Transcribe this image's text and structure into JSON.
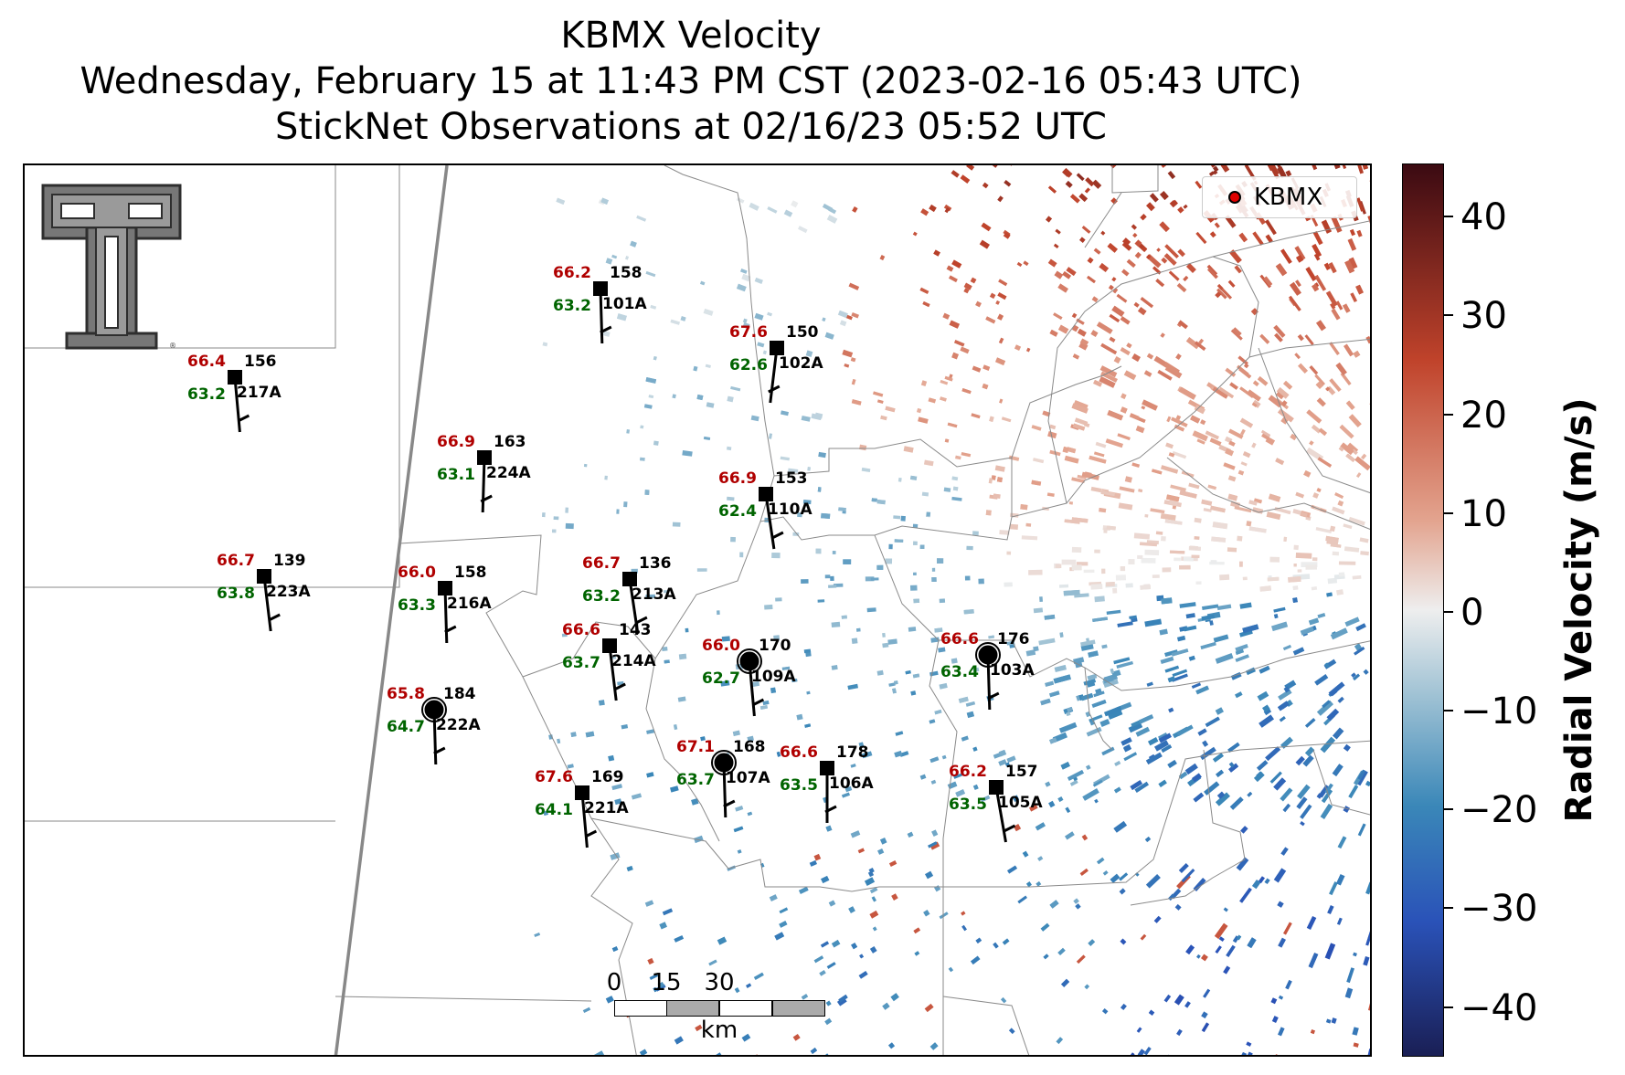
{
  "title": {
    "line1": "KBMX Velocity",
    "line2": "Wednesday, February 15 at 11:43 PM CST (2023-02-16 05:43 UTC)",
    "line3": "StickNet Observations at 02/16/23 05:52 UTC"
  },
  "legend": {
    "label": "KBMX",
    "marker_color": "#e00000"
  },
  "logo": {
    "icon": "texas-tech-double-t-logo"
  },
  "scale_bar": {
    "ticks": [
      "0",
      "15",
      "30"
    ],
    "unit": "km"
  },
  "colorbar": {
    "label": "Radial Velocity (m/s)",
    "range": [
      -45,
      45
    ],
    "ticks": [
      "40",
      "30",
      "20",
      "10",
      "0",
      "−10",
      "−20",
      "−30",
      "−40"
    ],
    "colors": {
      "max": "#3b0a12",
      "pos": "#c0432b",
      "zero": "#eeeeee",
      "neg": "#3a87b8",
      "min": "#1a1f55"
    }
  },
  "station_colors": {
    "temperature": "#b00000",
    "dewpoint": "#006400",
    "id": "#000000"
  },
  "stations": [
    {
      "id": "101A",
      "temp": "66.2",
      "dew": "63.2",
      "pressure": "158",
      "marker": "square"
    },
    {
      "id": "102A",
      "temp": "67.6",
      "dew": "62.6",
      "pressure": "150",
      "marker": "square"
    },
    {
      "id": "217A",
      "temp": "66.4",
      "dew": "63.2",
      "pressure": "156",
      "marker": "square"
    },
    {
      "id": "224A",
      "temp": "66.9",
      "dew": "63.1",
      "pressure": "163",
      "marker": "square"
    },
    {
      "id": "110A",
      "temp": "66.9",
      "dew": "62.4",
      "pressure": "153",
      "marker": "square"
    },
    {
      "id": "223A",
      "temp": "66.7",
      "dew": "63.8",
      "pressure": "139",
      "marker": "square"
    },
    {
      "id": "216A",
      "temp": "66.0",
      "dew": "63.3",
      "pressure": "158",
      "marker": "square"
    },
    {
      "id": "213A",
      "temp": "66.7",
      "dew": "63.2",
      "pressure": "136",
      "marker": "square"
    },
    {
      "id": "214A",
      "temp": "66.6",
      "dew": "63.7",
      "pressure": "143",
      "marker": "square"
    },
    {
      "id": "109A",
      "temp": "66.0",
      "dew": "62.7",
      "pressure": "170",
      "marker": "circle"
    },
    {
      "id": "103A",
      "temp": "66.6",
      "dew": "63.4",
      "pressure": "176",
      "marker": "circle"
    },
    {
      "id": "222A",
      "temp": "65.8",
      "dew": "64.7",
      "pressure": "184",
      "marker": "circle"
    },
    {
      "id": "107A",
      "temp": "67.1",
      "dew": "63.7",
      "pressure": "168",
      "marker": "circle"
    },
    {
      "id": "106A",
      "temp": "66.6",
      "dew": "63.5",
      "pressure": "178",
      "marker": "square"
    },
    {
      "id": "105A",
      "temp": "66.2",
      "dew": "63.5",
      "pressure": "157",
      "marker": "square"
    },
    {
      "id": "221A",
      "temp": "67.6",
      "dew": "64.1",
      "pressure": "169",
      "marker": "square"
    }
  ]
}
